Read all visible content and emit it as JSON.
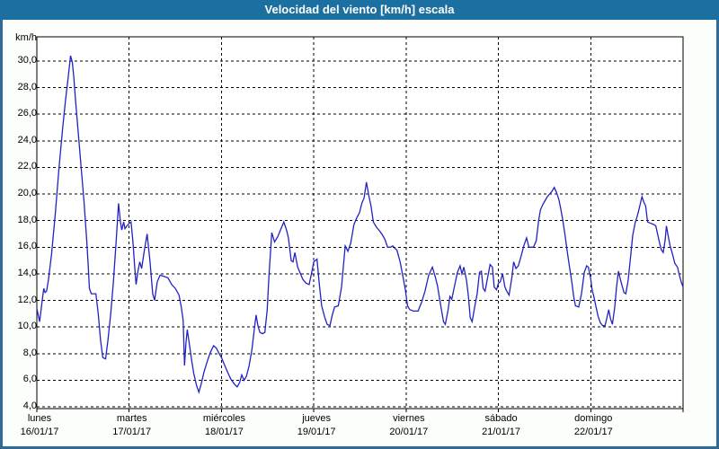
{
  "window": {
    "title": "Velocidad del viento [km/h] escala"
  },
  "colors": {
    "titlebar_bg": "#1B70A1",
    "window_border": "#2E6B99",
    "line": "#2222C4",
    "grid": "#000000",
    "plot_bg": "#FFFFFF",
    "background": "#FBFEFA",
    "title_text": "#FFFFFF",
    "label_text": "#000000"
  },
  "chart_data": {
    "type": "line",
    "title": "Velocidad del viento [km/h] escala",
    "unit_label": "km/h",
    "ylim": [
      4,
      30
    ],
    "ytick_step": 2,
    "ytick_labels": [
      "30,0",
      "28,0",
      "26,0",
      "24,0",
      "22,0",
      "20,0",
      "18,0",
      "16,0",
      "14,0",
      "12,0",
      "10,0",
      "8,0",
      "6,0",
      "4,0"
    ],
    "grid": "dashed",
    "legend": "none",
    "x_range_days": [
      0,
      7
    ],
    "x_days": [
      {
        "day": "lunes",
        "date": "16/01/17"
      },
      {
        "day": "martes",
        "date": "17/01/17"
      },
      {
        "day": "miércoles",
        "date": "18/01/17"
      },
      {
        "day": "jueves",
        "date": "19/01/17"
      },
      {
        "day": "viernes",
        "date": "20/01/17"
      },
      {
        "day": "sábado",
        "date": "21/01/17"
      },
      {
        "day": "domingo",
        "date": "22/01/17"
      }
    ],
    "series": [
      {
        "name": "velocidad_viento_kmh",
        "color": "#2222C4",
        "points": [
          [
            0.0,
            11.4
          ],
          [
            0.015,
            10.9
          ],
          [
            0.03,
            10.4
          ],
          [
            0.055,
            11.8
          ],
          [
            0.075,
            12.9
          ],
          [
            0.09,
            12.6
          ],
          [
            0.105,
            12.7
          ],
          [
            0.125,
            13.5
          ],
          [
            0.16,
            15.5
          ],
          [
            0.2,
            18.5
          ],
          [
            0.24,
            22.0
          ],
          [
            0.28,
            25.0
          ],
          [
            0.31,
            27.0
          ],
          [
            0.34,
            28.8
          ],
          [
            0.365,
            30.4
          ],
          [
            0.385,
            29.9
          ],
          [
            0.4,
            28.8
          ],
          [
            0.42,
            27.0
          ],
          [
            0.45,
            24.5
          ],
          [
            0.48,
            22.0
          ],
          [
            0.51,
            19.5
          ],
          [
            0.54,
            16.5
          ],
          [
            0.555,
            14.8
          ],
          [
            0.57,
            12.9
          ],
          [
            0.59,
            12.5
          ],
          [
            0.64,
            12.5
          ],
          [
            0.665,
            11.0
          ],
          [
            0.69,
            9.0
          ],
          [
            0.715,
            7.7
          ],
          [
            0.745,
            7.6
          ],
          [
            0.77,
            9.0
          ],
          [
            0.8,
            11.0
          ],
          [
            0.83,
            13.5
          ],
          [
            0.86,
            16.5
          ],
          [
            0.885,
            19.3
          ],
          [
            0.905,
            17.9
          ],
          [
            0.92,
            17.3
          ],
          [
            0.94,
            17.9
          ],
          [
            0.955,
            17.4
          ],
          [
            0.975,
            17.6
          ],
          [
            1.0,
            17.8
          ],
          [
            1.02,
            17.9
          ],
          [
            1.04,
            16.5
          ],
          [
            1.06,
            14.5
          ],
          [
            1.075,
            13.2
          ],
          [
            1.095,
            14.2
          ],
          [
            1.115,
            14.9
          ],
          [
            1.135,
            14.4
          ],
          [
            1.165,
            15.8
          ],
          [
            1.195,
            17.0
          ],
          [
            1.225,
            15.0
          ],
          [
            1.255,
            12.5
          ],
          [
            1.275,
            12.0
          ],
          [
            1.305,
            13.4
          ],
          [
            1.335,
            13.9
          ],
          [
            1.38,
            13.8
          ],
          [
            1.42,
            13.7
          ],
          [
            1.46,
            13.2
          ],
          [
            1.5,
            12.9
          ],
          [
            1.54,
            12.4
          ],
          [
            1.565,
            11.5
          ],
          [
            1.585,
            10.5
          ],
          [
            1.6,
            7.1
          ],
          [
            1.615,
            8.8
          ],
          [
            1.63,
            9.8
          ],
          [
            1.65,
            8.8
          ],
          [
            1.675,
            7.6
          ],
          [
            1.7,
            6.5
          ],
          [
            1.73,
            5.6
          ],
          [
            1.755,
            5.1
          ],
          [
            1.78,
            5.7
          ],
          [
            1.81,
            6.6
          ],
          [
            1.845,
            7.4
          ],
          [
            1.88,
            8.1
          ],
          [
            1.915,
            8.6
          ],
          [
            1.945,
            8.4
          ],
          [
            1.975,
            8.0
          ],
          [
            2.0,
            7.7
          ],
          [
            2.03,
            7.2
          ],
          [
            2.06,
            6.7
          ],
          [
            2.1,
            6.1
          ],
          [
            2.14,
            5.7
          ],
          [
            2.17,
            5.5
          ],
          [
            2.195,
            5.8
          ],
          [
            2.22,
            6.4
          ],
          [
            2.245,
            6.0
          ],
          [
            2.27,
            6.3
          ],
          [
            2.3,
            7.1
          ],
          [
            2.33,
            8.3
          ],
          [
            2.355,
            9.8
          ],
          [
            2.375,
            10.9
          ],
          [
            2.395,
            10.1
          ],
          [
            2.415,
            9.6
          ],
          [
            2.445,
            9.5
          ],
          [
            2.47,
            9.6
          ],
          [
            2.495,
            11.3
          ],
          [
            2.515,
            13.9
          ],
          [
            2.545,
            17.1
          ],
          [
            2.575,
            16.4
          ],
          [
            2.61,
            16.8
          ],
          [
            2.645,
            17.4
          ],
          [
            2.675,
            17.9
          ],
          [
            2.705,
            17.3
          ],
          [
            2.725,
            16.7
          ],
          [
            2.755,
            15.0
          ],
          [
            2.775,
            14.9
          ],
          [
            2.795,
            15.6
          ],
          [
            2.825,
            14.5
          ],
          [
            2.85,
            14.1
          ],
          [
            2.88,
            13.6
          ],
          [
            2.915,
            13.3
          ],
          [
            2.95,
            13.2
          ],
          [
            2.98,
            14.2
          ],
          [
            3.0,
            14.9
          ],
          [
            3.035,
            15.1
          ],
          [
            3.06,
            13.2
          ],
          [
            3.085,
            11.6
          ],
          [
            3.115,
            10.8
          ],
          [
            3.145,
            10.2
          ],
          [
            3.175,
            10.1
          ],
          [
            3.2,
            10.9
          ],
          [
            3.225,
            11.5
          ],
          [
            3.265,
            11.6
          ],
          [
            3.3,
            13.0
          ],
          [
            3.34,
            16.1
          ],
          [
            3.37,
            15.7
          ],
          [
            3.4,
            16.3
          ],
          [
            3.435,
            17.7
          ],
          [
            3.465,
            18.2
          ],
          [
            3.495,
            18.6
          ],
          [
            3.52,
            19.3
          ],
          [
            3.545,
            19.7
          ],
          [
            3.57,
            20.9
          ],
          [
            3.595,
            19.9
          ],
          [
            3.62,
            19.1
          ],
          [
            3.645,
            17.9
          ],
          [
            3.68,
            17.5
          ],
          [
            3.715,
            17.2
          ],
          [
            3.745,
            16.9
          ],
          [
            3.77,
            16.6
          ],
          [
            3.8,
            16.0
          ],
          [
            3.83,
            16.0
          ],
          [
            3.855,
            16.1
          ],
          [
            3.88,
            15.9
          ],
          [
            3.9,
            15.8
          ],
          [
            3.935,
            14.9
          ],
          [
            3.965,
            13.8
          ],
          [
            3.99,
            12.9
          ],
          [
            4.015,
            11.6
          ],
          [
            4.04,
            11.3
          ],
          [
            4.08,
            11.2
          ],
          [
            4.13,
            11.2
          ],
          [
            4.17,
            11.9
          ],
          [
            4.205,
            12.7
          ],
          [
            4.245,
            13.9
          ],
          [
            4.285,
            14.5
          ],
          [
            4.315,
            13.8
          ],
          [
            4.34,
            13.1
          ],
          [
            4.375,
            11.6
          ],
          [
            4.405,
            10.4
          ],
          [
            4.425,
            10.2
          ],
          [
            4.455,
            11.3
          ],
          [
            4.475,
            12.3
          ],
          [
            4.495,
            12.1
          ],
          [
            4.525,
            13.1
          ],
          [
            4.555,
            14.1
          ],
          [
            4.585,
            14.6
          ],
          [
            4.605,
            14.0
          ],
          [
            4.625,
            14.5
          ],
          [
            4.655,
            13.5
          ],
          [
            4.675,
            12.3
          ],
          [
            4.695,
            10.7
          ],
          [
            4.715,
            10.4
          ],
          [
            4.745,
            11.6
          ],
          [
            4.77,
            12.5
          ],
          [
            4.795,
            14.1
          ],
          [
            4.815,
            14.2
          ],
          [
            4.835,
            12.9
          ],
          [
            4.855,
            12.7
          ],
          [
            4.885,
            13.8
          ],
          [
            4.91,
            14.7
          ],
          [
            4.935,
            14.5
          ],
          [
            4.955,
            13.0
          ],
          [
            4.98,
            12.8
          ],
          [
            5.0,
            13.3
          ],
          [
            5.02,
            13.4
          ],
          [
            5.045,
            14.0
          ],
          [
            5.07,
            13.0
          ],
          [
            5.09,
            12.7
          ],
          [
            5.115,
            12.4
          ],
          [
            5.145,
            13.7
          ],
          [
            5.165,
            14.9
          ],
          [
            5.19,
            14.4
          ],
          [
            5.215,
            14.6
          ],
          [
            5.245,
            15.3
          ],
          [
            5.275,
            16.1
          ],
          [
            5.305,
            16.7
          ],
          [
            5.33,
            16.0
          ],
          [
            5.38,
            16.0
          ],
          [
            5.41,
            16.5
          ],
          [
            5.435,
            18.0
          ],
          [
            5.455,
            18.8
          ],
          [
            5.48,
            19.2
          ],
          [
            5.505,
            19.5
          ],
          [
            5.53,
            19.8
          ],
          [
            5.555,
            20.0
          ],
          [
            5.58,
            20.2
          ],
          [
            5.605,
            20.5
          ],
          [
            5.63,
            20.1
          ],
          [
            5.655,
            19.6
          ],
          [
            5.675,
            18.9
          ],
          [
            5.695,
            18.1
          ],
          [
            5.72,
            17.0
          ],
          [
            5.745,
            15.7
          ],
          [
            5.77,
            14.5
          ],
          [
            5.795,
            13.4
          ],
          [
            5.815,
            12.3
          ],
          [
            5.835,
            11.6
          ],
          [
            5.87,
            11.5
          ],
          [
            5.9,
            12.5
          ],
          [
            5.93,
            14.1
          ],
          [
            5.955,
            14.6
          ],
          [
            5.975,
            14.5
          ],
          [
            6.0,
            13.6
          ],
          [
            6.015,
            12.8
          ],
          [
            6.03,
            12.4
          ],
          [
            6.055,
            11.6
          ],
          [
            6.08,
            10.8
          ],
          [
            6.105,
            10.3
          ],
          [
            6.13,
            10.1
          ],
          [
            6.155,
            10.1
          ],
          [
            6.175,
            10.7
          ],
          [
            6.195,
            11.3
          ],
          [
            6.215,
            10.6
          ],
          [
            6.235,
            10.2
          ],
          [
            6.26,
            11.5
          ],
          [
            6.28,
            13.0
          ],
          [
            6.3,
            14.2
          ],
          [
            6.32,
            13.6
          ],
          [
            6.34,
            13.1
          ],
          [
            6.36,
            12.6
          ],
          [
            6.38,
            12.5
          ],
          [
            6.405,
            13.5
          ],
          [
            6.43,
            15.2
          ],
          [
            6.455,
            16.9
          ],
          [
            6.48,
            17.8
          ],
          [
            6.51,
            18.5
          ],
          [
            6.535,
            19.2
          ],
          [
            6.555,
            19.8
          ],
          [
            6.575,
            19.4
          ],
          [
            6.595,
            19.1
          ],
          [
            6.615,
            17.9
          ],
          [
            6.65,
            17.8
          ],
          [
            6.685,
            17.7
          ],
          [
            6.705,
            17.6
          ],
          [
            6.73,
            16.8
          ],
          [
            6.75,
            16.2
          ],
          [
            6.765,
            15.8
          ],
          [
            6.785,
            15.6
          ],
          [
            6.805,
            16.5
          ],
          [
            6.82,
            17.6
          ],
          [
            6.84,
            16.8
          ],
          [
            6.86,
            16.1
          ],
          [
            6.885,
            15.5
          ],
          [
            6.91,
            14.8
          ],
          [
            6.94,
            14.5
          ],
          [
            6.96,
            13.9
          ],
          [
            6.98,
            13.4
          ],
          [
            7.0,
            13.0
          ]
        ]
      }
    ]
  }
}
